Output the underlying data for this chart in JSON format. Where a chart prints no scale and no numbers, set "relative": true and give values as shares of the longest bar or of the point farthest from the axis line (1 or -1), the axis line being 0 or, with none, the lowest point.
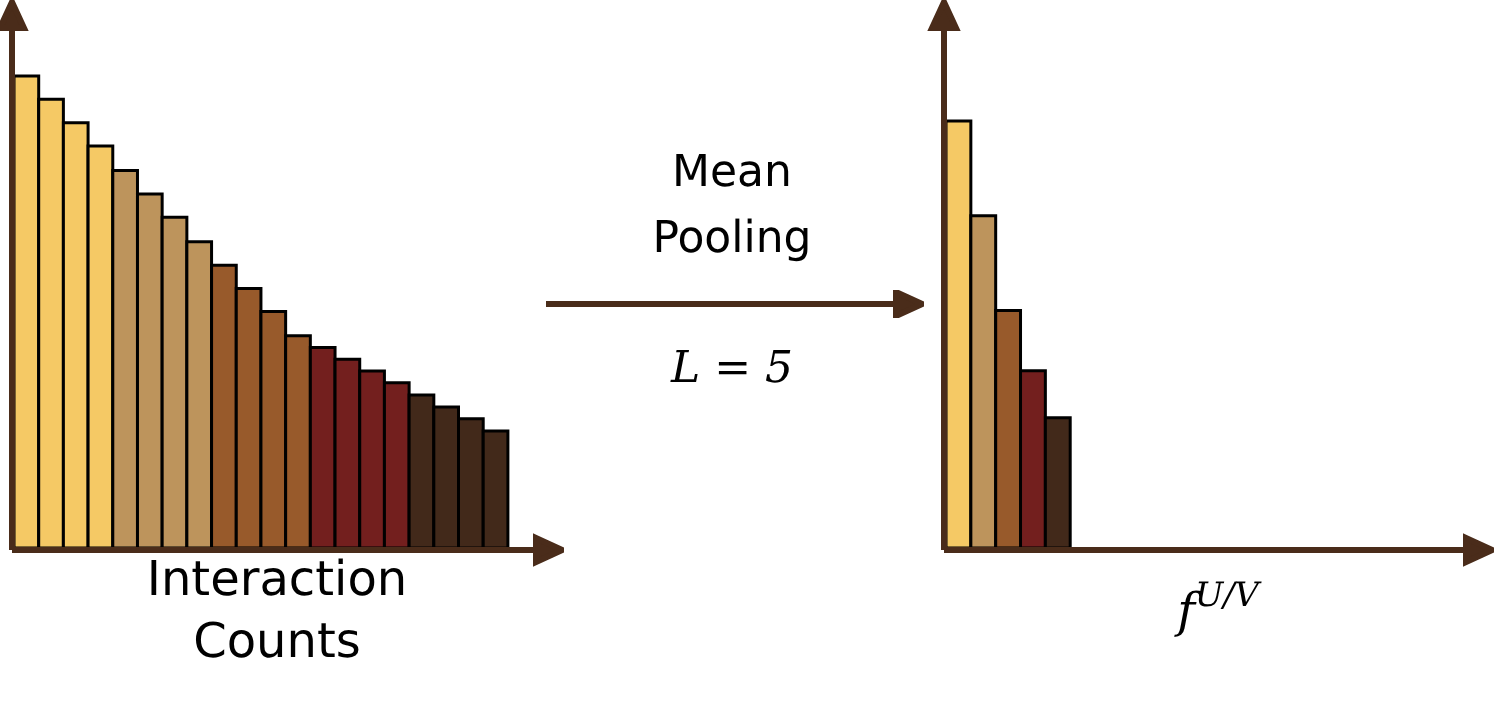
{
  "chart_data": [
    {
      "type": "bar",
      "relative": true,
      "xlabel": "Interaction Counts",
      "categories": [
        null,
        null,
        null,
        null,
        null,
        null,
        null,
        null,
        null,
        null,
        null,
        null,
        null,
        null,
        null,
        null,
        null,
        null,
        null,
        null
      ],
      "values": [
        1,
        0.951,
        0.901,
        0.852,
        0.8,
        0.75,
        0.701,
        0.649,
        0.599,
        0.55,
        0.501,
        0.45,
        0.425,
        0.4,
        0.375,
        0.35,
        0.324,
        0.299,
        0.274,
        0.248
      ],
      "colors": [
        "#f5c965",
        "#f5c965",
        "#f5c965",
        "#f5c965",
        "#bd945c",
        "#bd945c",
        "#bd945c",
        "#bd945c",
        "#985a2b",
        "#985a2b",
        "#985a2b",
        "#985a2b",
        "#731f1e",
        "#731f1e",
        "#731f1e",
        "#731f1e",
        "#42291a",
        "#42291a",
        "#42291a",
        "#42291a"
      ]
    },
    {
      "type": "other",
      "annotations": [
        "Mean Pooling",
        "L = 5"
      ]
    },
    {
      "type": "bar",
      "relative": true,
      "xlabel": "f$^{U/V}$",
      "categories": [
        null,
        null,
        null,
        null,
        null
      ],
      "values": [
        1,
        0.778,
        0.556,
        0.415,
        0.305
      ],
      "colors": [
        "#f5c965",
        "#bd945c",
        "#985a2b",
        "#731f1e",
        "#42291a"
      ]
    }
  ]
}
